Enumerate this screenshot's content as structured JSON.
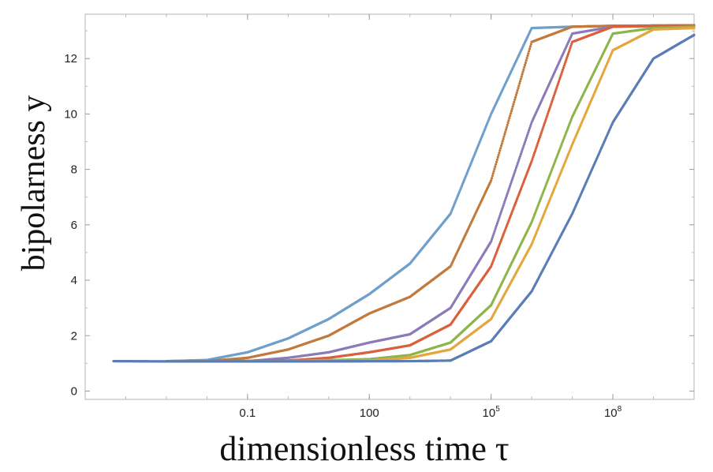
{
  "chart_data": {
    "type": "scatter",
    "title": "",
    "xlabel": "dimensionless time τ",
    "ylabel": "bipolarness y",
    "x_scale": "log",
    "xlim": [
      1e-05,
      10000000000.0
    ],
    "ylim": [
      -0.3,
      13.6
    ],
    "x_ticks": [
      {
        "value": 0.1,
        "label": "0.1",
        "sup": ""
      },
      {
        "value": 100,
        "label": "100",
        "sup": ""
      },
      {
        "value": 100000,
        "label": "10",
        "sup": "5"
      },
      {
        "value": 100000000,
        "label": "10",
        "sup": "8"
      }
    ],
    "y_ticks": [
      0,
      2,
      4,
      6,
      8,
      10,
      12
    ],
    "grid": false,
    "legend": "none",
    "series": [
      {
        "color": "#6F9FCB",
        "points": [
          [
            0.001,
            1.08
          ],
          [
            0.01,
            1.12
          ],
          [
            0.1,
            1.4
          ],
          [
            1,
            1.9
          ],
          [
            10,
            2.6
          ],
          [
            100,
            3.5
          ],
          [
            1000,
            4.6
          ],
          [
            10000,
            6.4
          ],
          [
            100000,
            10.0
          ],
          [
            1000000,
            13.1
          ],
          [
            10000000,
            13.15
          ],
          [
            100000000,
            13.18
          ],
          [
            10000000000,
            13.2
          ]
        ]
      },
      {
        "color": "#C27A3D",
        "points": [
          [
            0.001,
            1.07
          ],
          [
            0.01,
            1.08
          ],
          [
            0.1,
            1.2
          ],
          [
            1,
            1.5
          ],
          [
            10,
            2.0
          ],
          [
            100,
            2.8
          ],
          [
            1000,
            3.4
          ],
          [
            10000,
            4.5
          ],
          [
            100000,
            7.6
          ],
          [
            1000000,
            12.6
          ],
          [
            10000000,
            13.15
          ],
          [
            100000000,
            13.18
          ],
          [
            10000000000,
            13.2
          ]
        ]
      },
      {
        "color": "#8C7BB8",
        "points": [
          [
            0.001,
            1.07
          ],
          [
            0.1,
            1.08
          ],
          [
            1,
            1.2
          ],
          [
            10,
            1.4
          ],
          [
            100,
            1.75
          ],
          [
            1000,
            2.05
          ],
          [
            10000,
            3.0
          ],
          [
            100000,
            5.4
          ],
          [
            1000000,
            9.7
          ],
          [
            10000000,
            12.9
          ],
          [
            100000000,
            13.15
          ],
          [
            10000000000,
            13.2
          ]
        ]
      },
      {
        "color": "#D9603B",
        "points": [
          [
            0.001,
            1.07
          ],
          [
            1,
            1.1
          ],
          [
            10,
            1.2
          ],
          [
            100,
            1.4
          ],
          [
            1000,
            1.65
          ],
          [
            10000,
            2.4
          ],
          [
            100000,
            4.5
          ],
          [
            1000000,
            8.3
          ],
          [
            10000000,
            12.6
          ],
          [
            100000000,
            13.15
          ],
          [
            10000000000,
            13.2
          ]
        ]
      },
      {
        "color": "#8DB54A",
        "points": [
          [
            0.001,
            1.07
          ],
          [
            1,
            1.08
          ],
          [
            100,
            1.15
          ],
          [
            1000,
            1.3
          ],
          [
            10000,
            1.75
          ],
          [
            100000,
            3.1
          ],
          [
            1000000,
            6.1
          ],
          [
            10000000,
            9.9
          ],
          [
            100000000,
            12.9
          ],
          [
            1000000000,
            13.1
          ],
          [
            10000000000,
            13.15
          ]
        ]
      },
      {
        "color": "#E3A73E",
        "points": [
          [
            0.001,
            1.07
          ],
          [
            1,
            1.08
          ],
          [
            100,
            1.1
          ],
          [
            1000,
            1.2
          ],
          [
            10000,
            1.5
          ],
          [
            100000,
            2.6
          ],
          [
            1000000,
            5.3
          ],
          [
            10000000,
            8.9
          ],
          [
            100000000,
            12.3
          ],
          [
            1000000000,
            13.05
          ],
          [
            10000000000,
            13.1
          ]
        ]
      },
      {
        "color": "#5A7DB5",
        "points": [
          [
            5e-05,
            1.08
          ],
          [
            0.001,
            1.07
          ],
          [
            1,
            1.07
          ],
          [
            1000,
            1.08
          ],
          [
            10000,
            1.1
          ],
          [
            100000,
            1.8
          ],
          [
            1000000,
            3.6
          ],
          [
            10000000,
            6.4
          ],
          [
            100000000,
            9.7
          ],
          [
            1000000000,
            12.0
          ],
          [
            10000000000,
            12.85
          ]
        ]
      }
    ]
  }
}
